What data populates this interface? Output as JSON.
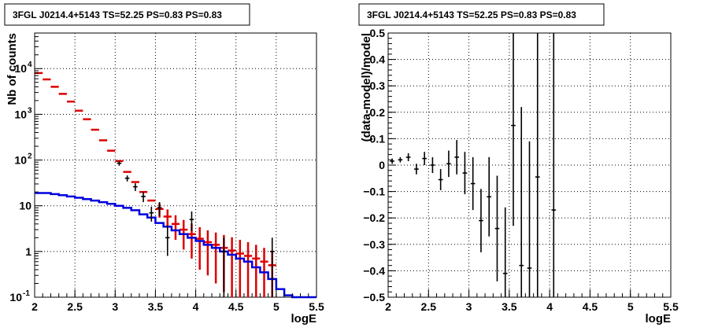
{
  "chart_data": [
    {
      "type": "line",
      "title": "3FGL J0214.4+5143 TS=52.25 PS=0.83 PS=0.83",
      "xlabel": "logE",
      "ylabel": "Nb of counts",
      "xlim": [
        2,
        5.5
      ],
      "ylim": [
        0.1,
        60000
      ],
      "yscale": "log",
      "grid": true,
      "x_ticks": [
        "2",
        "2.5",
        "3",
        "3.5",
        "4",
        "4.5",
        "5",
        "5.5"
      ],
      "y_ticks": [
        {
          "value": 0.1,
          "label": "10",
          "sup": "-1"
        },
        {
          "value": 1,
          "label": "1",
          "sup": ""
        },
        {
          "value": 10,
          "label": "10",
          "sup": ""
        },
        {
          "value": 100,
          "label": "10",
          "sup": "2"
        },
        {
          "value": 1000,
          "label": "10",
          "sup": "3"
        },
        {
          "value": 10000,
          "label": "10",
          "sup": "4"
        }
      ],
      "colors": {
        "model": "#dd0000",
        "background": "#0000dd",
        "data": "#000000"
      },
      "bin_width": 0.1,
      "series": [
        {
          "style": "model-with-errors",
          "x": [
            2.05,
            2.15,
            2.25,
            2.35,
            2.45,
            2.55,
            2.65,
            2.75,
            2.85,
            2.95,
            3.05,
            3.15,
            3.25,
            3.35,
            3.45,
            3.55,
            3.65,
            3.75,
            3.85,
            3.95,
            4.05,
            4.15,
            4.25,
            4.35,
            4.45,
            4.55,
            4.65,
            4.75,
            4.85,
            4.95
          ],
          "y": [
            8000,
            5800,
            4000,
            2800,
            1900,
            1200,
            780,
            460,
            270,
            160,
            95,
            55,
            33,
            20,
            13,
            8.5,
            5.8,
            4.0,
            3.0,
            2.4,
            1.9,
            1.6,
            1.4,
            1.2,
            1.05,
            0.9,
            0.8,
            0.7,
            0.6,
            0.5
          ],
          "yerr_low": [
            0,
            0,
            0,
            0,
            0,
            0,
            0,
            0,
            0,
            0,
            0,
            0,
            0,
            0,
            0,
            3,
            2.5,
            2.2,
            1.9,
            1.7,
            1.5,
            1.3,
            1.2,
            1.07,
            0.95,
            0.83,
            0.74,
            0.65,
            0.56,
            0.47
          ],
          "yerr_high": [
            0,
            0,
            0,
            0,
            0,
            0,
            0,
            0,
            0,
            0,
            0,
            0,
            0,
            0,
            0,
            3,
            2.5,
            2.2,
            1.9,
            1.7,
            1.5,
            1.3,
            1.2,
            1.1,
            1.0,
            0.9,
            0.8,
            0.7,
            0.6,
            0.5
          ]
        },
        {
          "style": "step",
          "x": [
            2.05,
            2.15,
            2.25,
            2.35,
            2.45,
            2.55,
            2.65,
            2.75,
            2.85,
            2.95,
            3.05,
            3.15,
            3.25,
            3.35,
            3.45,
            3.55,
            3.65,
            3.75,
            3.85,
            3.95,
            4.05,
            4.15,
            4.25,
            4.35,
            4.45,
            4.55,
            4.65,
            4.75,
            4.85,
            4.95,
            5.05,
            5.15,
            5.25,
            5.35,
            5.45
          ],
          "y": [
            19,
            19,
            18,
            17,
            16,
            15,
            14,
            13,
            12,
            11,
            10,
            9,
            8,
            6.5,
            5.5,
            4.2,
            3.5,
            2.9,
            2.4,
            2.0,
            1.7,
            1.4,
            1.2,
            1.0,
            0.85,
            0.7,
            0.6,
            0.45,
            0.35,
            0.25,
            0.15,
            0.11,
            0.1,
            0.1,
            0.1
          ]
        },
        {
          "style": "data-with-errors",
          "x": [
            3.05,
            3.15,
            3.25,
            3.35,
            3.45,
            3.55,
            3.65,
            3.95,
            4.35,
            4.95
          ],
          "y": [
            85,
            40,
            26,
            16,
            7,
            9,
            2,
            5,
            1,
            1
          ],
          "yerr_low": [
            10,
            6,
            5,
            4,
            2.5,
            3,
            1.2,
            2.2,
            0.9,
            0.9
          ],
          "yerr_high": [
            10,
            6,
            5,
            4,
            2.5,
            3,
            1.6,
            2.5,
            1,
            1
          ]
        }
      ]
    },
    {
      "type": "scatter",
      "title": "3FGL J0214.4+5143 TS=52.25 PS=0.83 PS=0.83",
      "xlabel": "logE",
      "ylabel": "(data-model)/model",
      "xlim": [
        2,
        5.5
      ],
      "ylim": [
        -0.5,
        0.5
      ],
      "grid": true,
      "x_ticks": [
        "2",
        "2.5",
        "3",
        "3.5",
        "4",
        "4.5",
        "5",
        "5.5"
      ],
      "y_ticks": [
        "-0.5",
        "-0.4",
        "-0.3",
        "-0.2",
        "-0.1",
        "0",
        "0.1",
        "0.2",
        "0.3",
        "0.4",
        "0.5"
      ],
      "bin_width": 0.1,
      "series": [
        {
          "style": "data-with-errors",
          "x": [
            2.05,
            2.15,
            2.25,
            2.35,
            2.45,
            2.55,
            2.65,
            2.75,
            2.85,
            2.95,
            3.05,
            3.15,
            3.25,
            3.35,
            3.45,
            3.55,
            3.65,
            3.75,
            3.85,
            4.05
          ],
          "y": [
            0.015,
            0.02,
            0.03,
            -0.015,
            0.025,
            0.0,
            -0.055,
            0.005,
            0.03,
            -0.03,
            -0.07,
            -0.21,
            -0.12,
            -0.24,
            -0.41,
            0.15,
            -0.38,
            -0.39,
            -0.045,
            -0.17
          ],
          "yerr_low": [
            0.01,
            0.01,
            0.015,
            0.02,
            0.025,
            0.03,
            0.04,
            0.05,
            0.065,
            0.08,
            0.1,
            0.12,
            0.15,
            0.2,
            0.25,
            0.38,
            0.4,
            0.5,
            0.6,
            0.7
          ],
          "yerr_high": [
            0.01,
            0.01,
            0.015,
            0.02,
            0.025,
            0.03,
            0.04,
            0.05,
            0.065,
            0.08,
            0.1,
            0.12,
            0.15,
            0.2,
            0.25,
            0.6,
            0.6,
            0.48,
            0.8,
            0.9
          ]
        }
      ]
    }
  ]
}
